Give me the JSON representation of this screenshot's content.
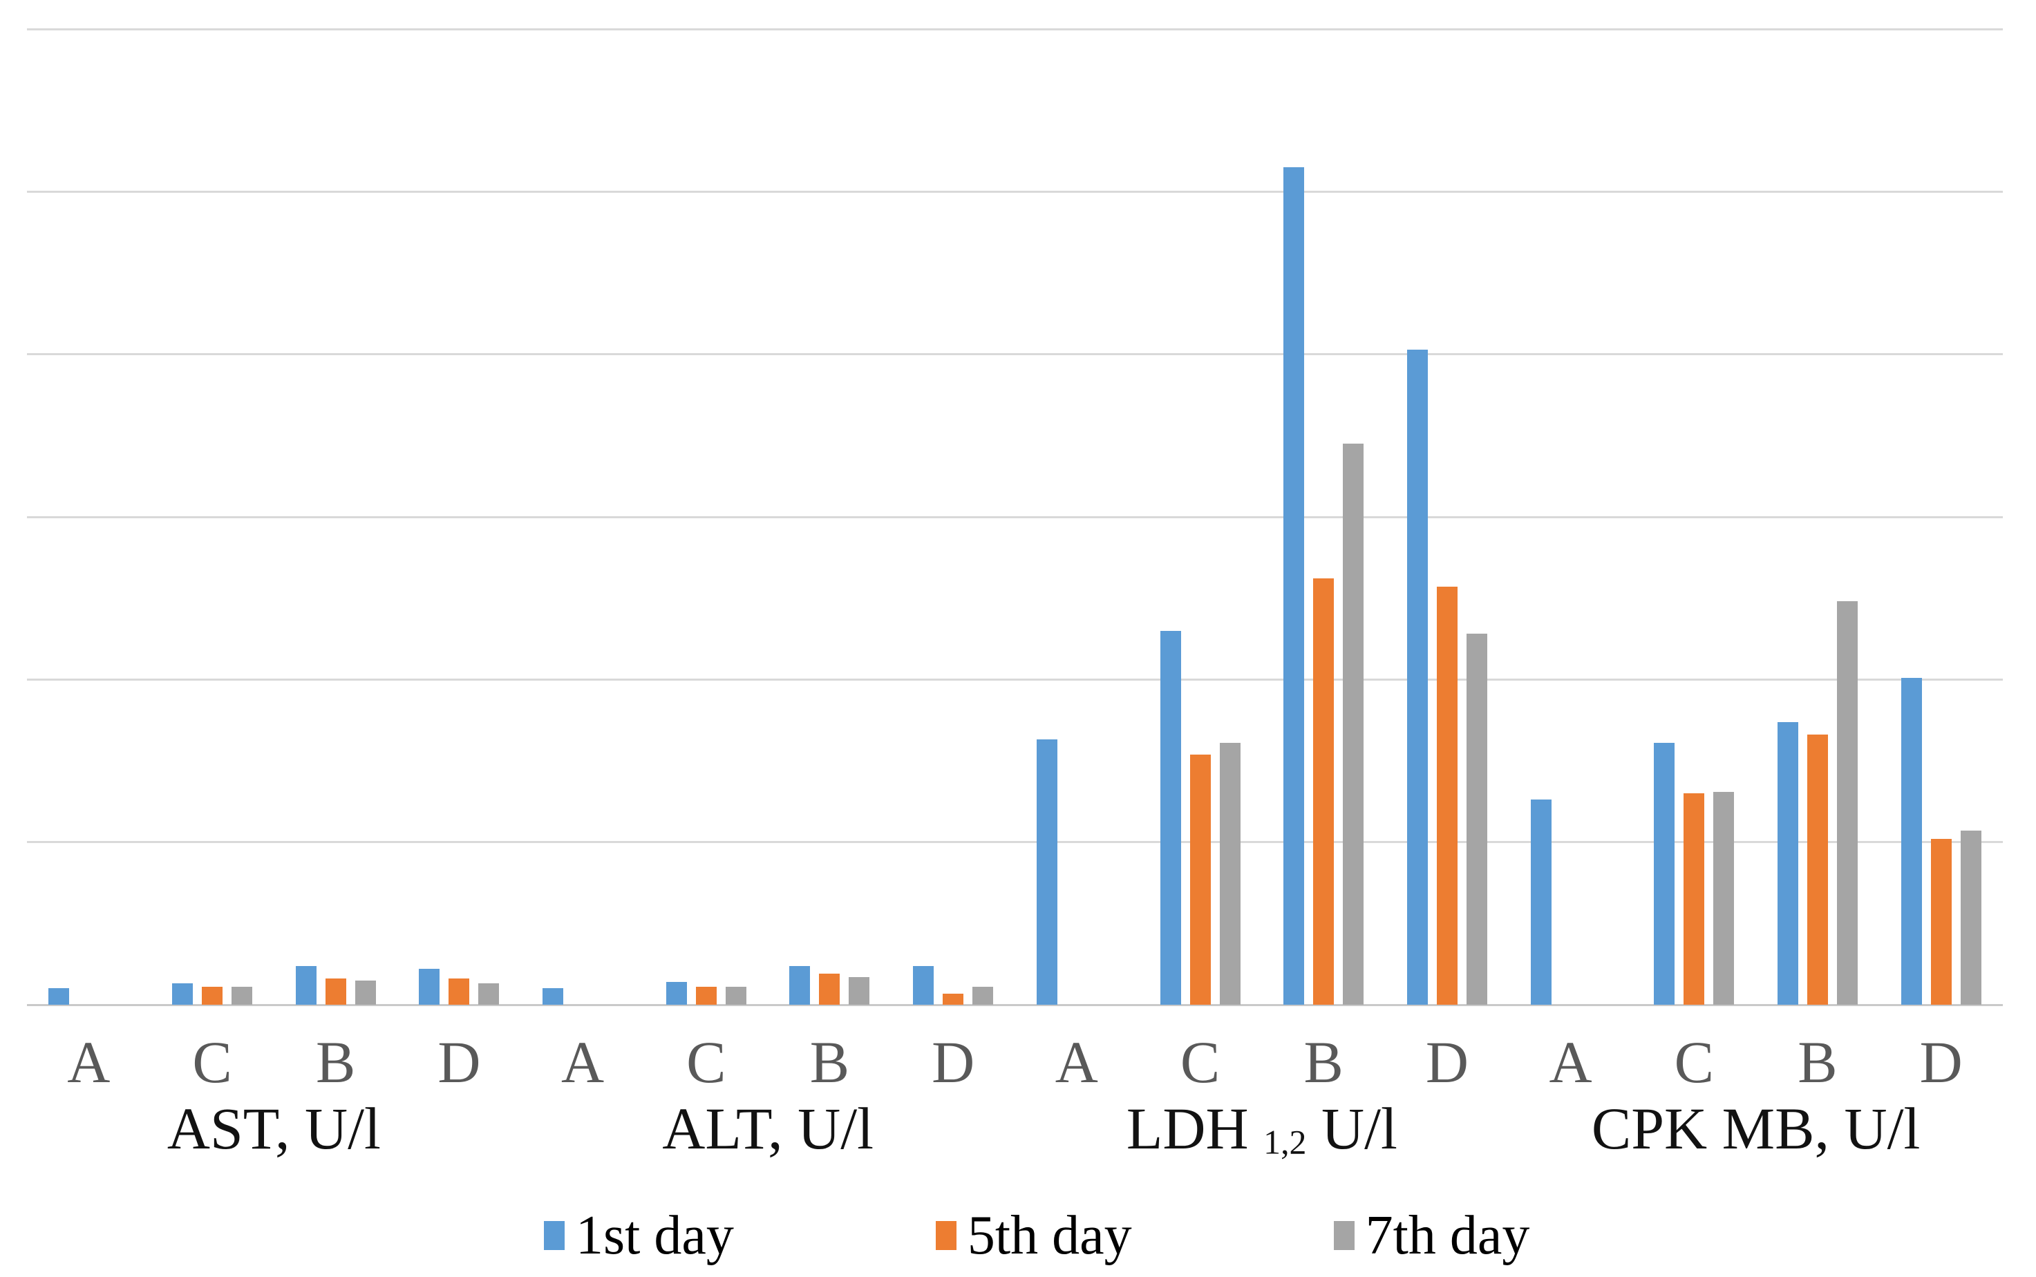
{
  "style": {
    "background": "#ffffff",
    "gridline_color": "#d9d9d9",
    "axis_line_color": "#c9c9c9",
    "tick_label_color": "#595959",
    "group_label_color": "#121212",
    "legend_text_color": "#000000"
  },
  "chart_data": {
    "type": "bar",
    "title": "",
    "xlabel": "",
    "ylabel": "",
    "y_axis": {
      "numeric_labels_visible": false,
      "ylim": [
        0,
        6
      ],
      "gridline_interval": 1,
      "gridline_count": 7,
      "values_unit": "relative gridline units (y axis shows no numbers)"
    },
    "legend_position": "bottom",
    "categories": [
      "A",
      "C",
      "B",
      "D",
      "A",
      "C",
      "B",
      "D",
      "A",
      "C",
      "B",
      "D",
      "A",
      "C",
      "B",
      "D"
    ],
    "categories_per_group": [
      "A",
      "C",
      "B",
      "D"
    ],
    "x_groups": [
      {
        "label": "AST, U/l"
      },
      {
        "label": "ALT, U/l"
      },
      {
        "label": "LDH 1,2 U/l",
        "label_main": "LDH ",
        "label_sub": "1,2",
        "label_tail": " U/l"
      },
      {
        "label": "CPK MB, U/l"
      }
    ],
    "series": [
      {
        "name": "1st day",
        "color": "#5b9bd5",
        "values": [
          0.1,
          0.13,
          0.24,
          0.22,
          0.1,
          0.14,
          0.24,
          0.24,
          1.63,
          2.3,
          5.15,
          4.03,
          1.26,
          1.61,
          1.74,
          2.01
        ]
      },
      {
        "name": "5th day",
        "color": "#ed7d31",
        "values": [
          0,
          0.11,
          0.16,
          0.16,
          0,
          0.11,
          0.19,
          0.07,
          0,
          1.54,
          2.62,
          2.57,
          0,
          1.3,
          1.66,
          1.02
        ]
      },
      {
        "name": "7th day",
        "color": "#a5a5a5",
        "values": [
          0,
          0.11,
          0.15,
          0.13,
          0,
          0.11,
          0.17,
          0.11,
          0,
          1.61,
          3.45,
          2.28,
          0,
          1.31,
          2.48,
          1.07
        ]
      }
    ]
  }
}
